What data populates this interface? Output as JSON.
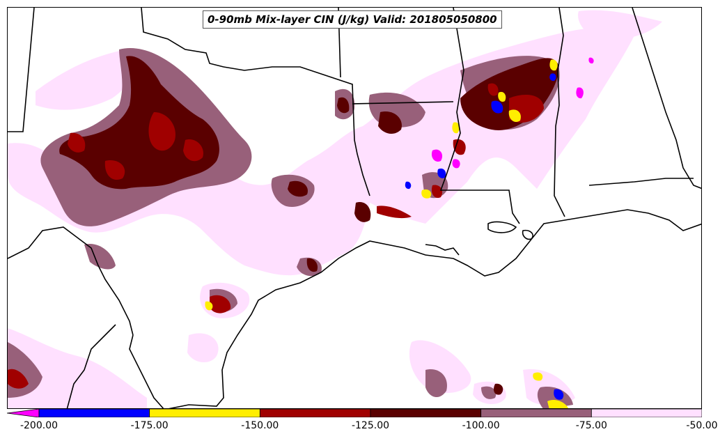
{
  "title": "0-90mb Mix-layer CIN (J/kg) Valid: 201805050800",
  "colorbar": {
    "tick_labels": [
      "-200.00",
      "-175.00",
      "-150.00",
      "-125.00",
      "-100.00",
      "-75.00",
      "-50.00"
    ],
    "bins": [
      {
        "range": [
          -225,
          -200
        ],
        "color": "#ff00ff",
        "shape": "arrow-extension"
      },
      {
        "range": [
          -200,
          -175
        ],
        "color": "#0000ff"
      },
      {
        "range": [
          -175,
          -150
        ],
        "color": "#ffee00"
      },
      {
        "range": [
          -150,
          -125
        ],
        "color": "#a00000"
      },
      {
        "range": [
          -125,
          -100
        ],
        "color": "#5a0000"
      },
      {
        "range": [
          -100,
          -75
        ],
        "color": "#98607a"
      },
      {
        "range": [
          -75,
          -50
        ],
        "color": "#ffe0ff"
      }
    ]
  },
  "map": {
    "background_color": "#ffffff",
    "boundary_color": "#000000",
    "region": "Southern Plains / Gulf Coast, USA"
  }
}
